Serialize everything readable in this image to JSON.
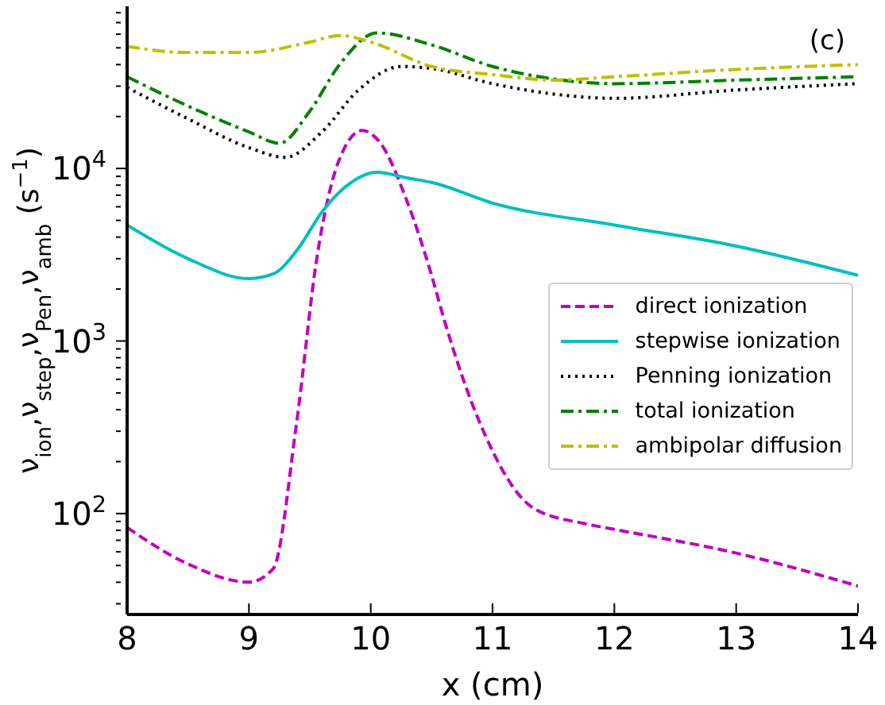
{
  "chart_data": {
    "type": "line",
    "xlabel": "x (cm)",
    "ylabel": "ν$_{ion}$,ν$_{step}$,ν$_{Pen}$,ν$_{amb}$ (s$^{−1}$)",
    "annotations": [
      "(c)"
    ],
    "log": "y",
    "xlim": [
      8,
      14
    ],
    "xticks": [
      8,
      9,
      10,
      11,
      12,
      13,
      14
    ],
    "ylim": [
      26,
      87000
    ],
    "yticks": [
      {
        "value": 30,
        "label": null
      },
      {
        "value": 40,
        "label": null
      },
      {
        "value": 50,
        "label": null
      },
      {
        "value": 60,
        "label": null
      },
      {
        "value": 70,
        "label": null
      },
      {
        "value": 80,
        "label": null
      },
      {
        "value": 90,
        "label": null
      },
      {
        "value": 100,
        "label": "10$^{2}$"
      },
      {
        "value": 200,
        "label": null
      },
      {
        "value": 300,
        "label": null
      },
      {
        "value": 400,
        "label": null
      },
      {
        "value": 500,
        "label": null
      },
      {
        "value": 600,
        "label": null
      },
      {
        "value": 700,
        "label": null
      },
      {
        "value": 800,
        "label": null
      },
      {
        "value": 900,
        "label": null
      },
      {
        "value": 1000,
        "label": "10$^{3}$"
      },
      {
        "value": 2000,
        "label": null
      },
      {
        "value": 3000,
        "label": null
      },
      {
        "value": 4000,
        "label": null
      },
      {
        "value": 5000,
        "label": null
      },
      {
        "value": 6000,
        "label": null
      },
      {
        "value": 7000,
        "label": null
      },
      {
        "value": 8000,
        "label": null
      },
      {
        "value": 9000,
        "label": null
      },
      {
        "value": 10000,
        "label": "10$^{4}$"
      },
      {
        "value": 20000,
        "label": null
      },
      {
        "value": 30000,
        "label": null
      },
      {
        "value": 40000,
        "label": null
      },
      {
        "value": 50000,
        "label": null
      },
      {
        "value": 60000,
        "label": null
      },
      {
        "value": 70000,
        "label": null
      },
      {
        "value": 80000,
        "label": null
      }
    ],
    "grid": false,
    "legend": "right",
    "marker": "none",
    "series": [
      {
        "name": "direct ionization",
        "color": "#bf00bf",
        "line_style": "dashed",
        "x": [
          8,
          8.5,
          9,
          9.2,
          9.39,
          9.56,
          9.73,
          9.93,
          10.08,
          10.3,
          10.5,
          10.6,
          10.9,
          11.34,
          11.77,
          12,
          13,
          14
        ],
        "values": [
          83,
          51,
          40,
          48,
          330,
          3100,
          10700,
          16600,
          14000,
          6400,
          2400,
          1350,
          330,
          107,
          87,
          81,
          59,
          38
        ]
      },
      {
        "name": "stepwise ionization",
        "color": "#00bfbf",
        "line_style": "solid",
        "x": [
          8,
          8.5,
          9,
          9.2,
          9.4,
          9.6,
          9.8,
          10.05,
          10.3,
          10.5,
          11,
          12,
          13,
          14
        ],
        "values": [
          4700,
          3000,
          2300,
          2450,
          3400,
          5600,
          7900,
          9500,
          8800,
          8300,
          6300,
          4700,
          3550,
          2400
        ]
      },
      {
        "name": "Penning ionization",
        "color": "#000000",
        "line_style": "dotted",
        "x": [
          8,
          8.5,
          9,
          9.3,
          9.6,
          9.9,
          10.25,
          10.5,
          11,
          11.5,
          12,
          13,
          14
        ],
        "values": [
          29500,
          19400,
          13200,
          11600,
          16300,
          28500,
          39000,
          38000,
          31000,
          27000,
          25500,
          28500,
          31000
        ]
      },
      {
        "name": "total ionization",
        "color": "#008000",
        "line_style": "dashdot",
        "x": [
          8,
          8.5,
          9,
          9.25,
          9.5,
          9.75,
          10.05,
          10.5,
          11,
          11.5,
          12,
          13,
          14
        ],
        "values": [
          34000,
          23000,
          16300,
          14000,
          21500,
          40500,
          61000,
          52000,
          39000,
          33000,
          31000,
          32500,
          34000
        ]
      },
      {
        "name": "ambipolar diffusion",
        "color": "#bfbf00",
        "line_style": "dashdot",
        "x": [
          8,
          8.5,
          9,
          9.5,
          9.75,
          10,
          10.5,
          11,
          11.5,
          12,
          13,
          14
        ],
        "values": [
          51000,
          47000,
          47000,
          54000,
          59000,
          54000,
          39000,
          35000,
          32500,
          34000,
          37500,
          40000
        ]
      }
    ]
  }
}
